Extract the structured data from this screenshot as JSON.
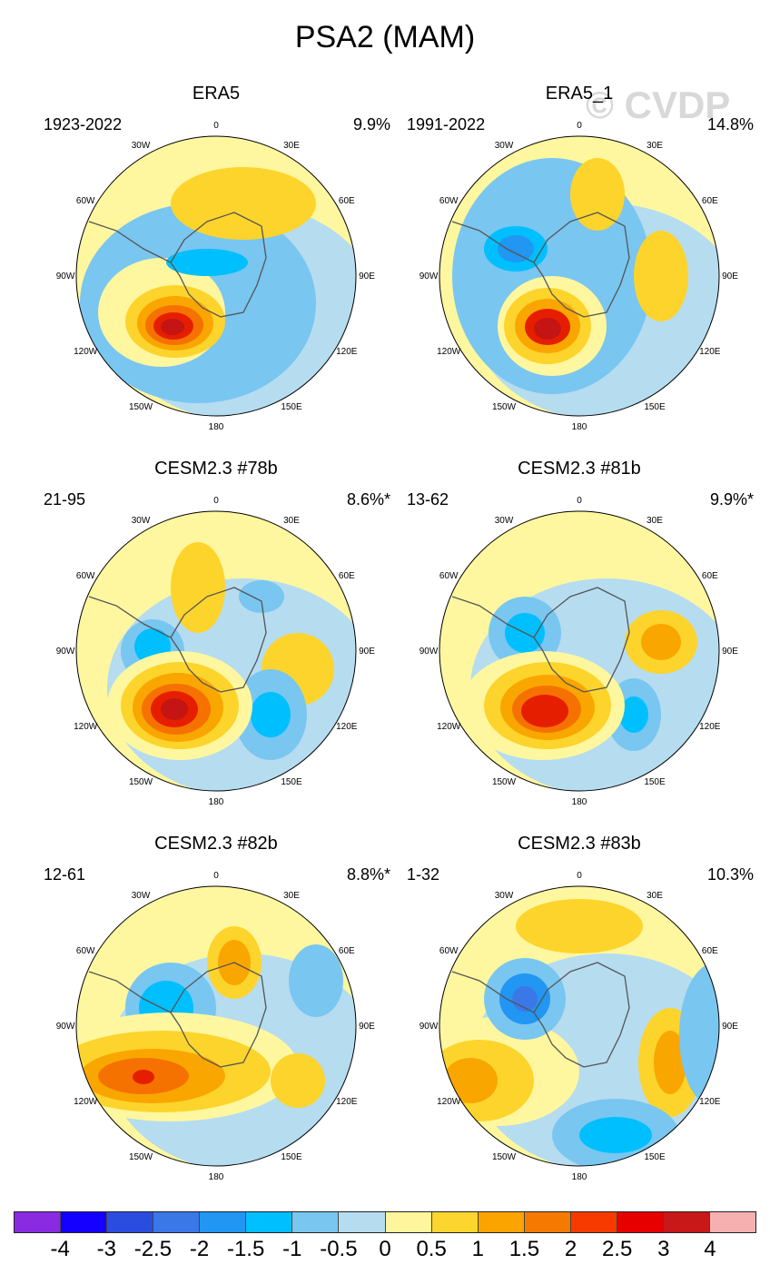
{
  "title": "PSA2 (MAM)",
  "watermark": "© CVDP",
  "lon_labels": [
    "0",
    "30E",
    "60E",
    "90E",
    "120E",
    "150E",
    "180",
    "150W",
    "120W",
    "90W",
    "60W",
    "30W"
  ],
  "panels": [
    {
      "name": "ERA5",
      "years": "1923-2022",
      "pct": "9.9%"
    },
    {
      "name": "ERA5_1",
      "years": "1991-2022",
      "pct": "14.8%"
    },
    {
      "name": "CESM2.3 #78b",
      "years": "21-95",
      "pct": "8.6%*"
    },
    {
      "name": "CESM2.3 #81b",
      "years": "13-62",
      "pct": "9.9%*"
    },
    {
      "name": "CESM2.3 #82b",
      "years": "12-61",
      "pct": "8.8%*"
    },
    {
      "name": "CESM2.3 #83b",
      "years": "1-32",
      "pct": "10.3%"
    }
  ],
  "colorbar": {
    "colors": [
      "#8a2be2",
      "#1400ff",
      "#2a4de0",
      "#3a78e8",
      "#2196f3",
      "#00bfff",
      "#79c6f0",
      "#b6dcf0",
      "#fff59c",
      "#fcd62e",
      "#fba400",
      "#f67a00",
      "#f73b00",
      "#e60000",
      "#c81818",
      "#f7b0b0"
    ],
    "labels": [
      "-4",
      "-3",
      "-2.5",
      "-2",
      "-1.5",
      "-1",
      "-0.5",
      "0",
      "0.5",
      "1",
      "1.5",
      "2",
      "2.5",
      "3",
      "4"
    ]
  },
  "map_colors": {
    "land": "#b9dcf2",
    "pos1": "#fef79f",
    "pos2": "#fdd42c",
    "pos3": "#faa600",
    "pos4": "#f57200",
    "pos5": "#e61e00",
    "pos6": "#c41414",
    "neg1": "#b6dcf0",
    "neg2": "#79c6f0",
    "neg3": "#00bfff",
    "neg4": "#2196f3",
    "neg5": "#3a78e8",
    "coast": "#555555"
  }
}
